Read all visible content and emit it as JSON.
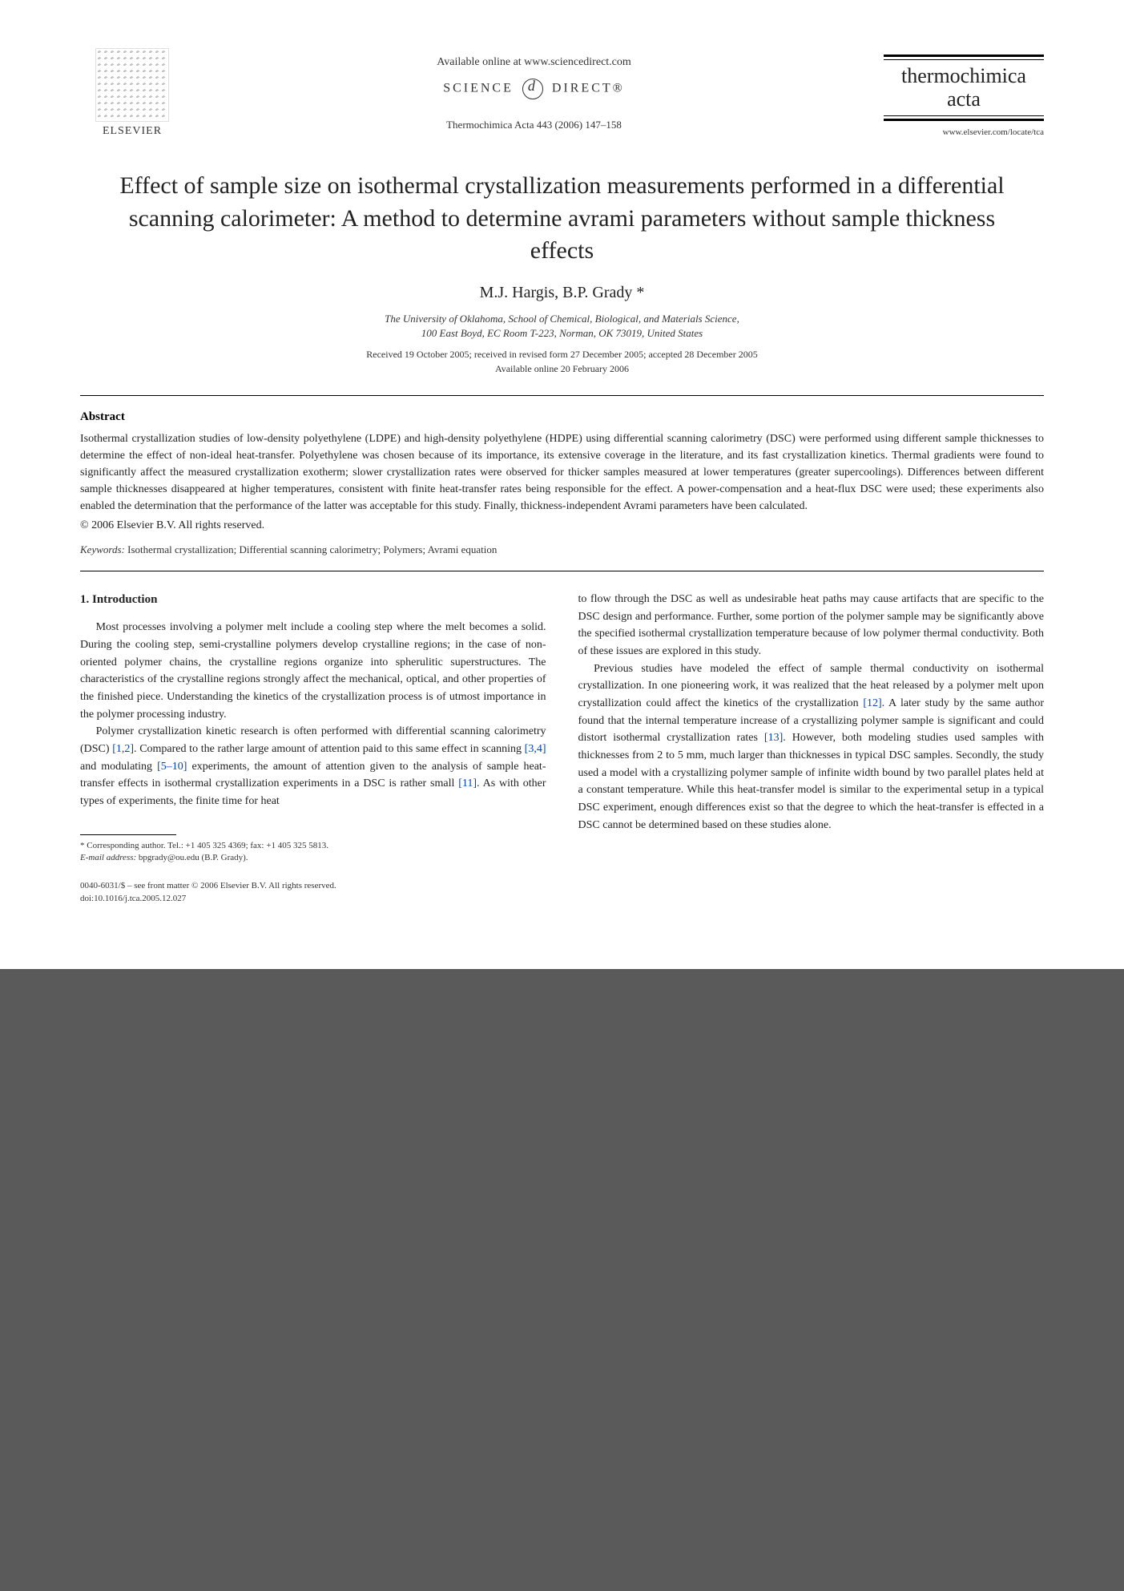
{
  "header": {
    "publisher_label": "ELSEVIER",
    "available_online": "Available online at www.sciencedirect.com",
    "science_left": "SCIENCE",
    "science_right": "DIRECT®",
    "citation": "Thermochimica Acta 443 (2006) 147–158",
    "journal_title_line1": "thermochimica",
    "journal_title_line2": "acta",
    "journal_url": "www.elsevier.com/locate/tca"
  },
  "article": {
    "title": "Effect of sample size on isothermal crystallization measurements performed in a differential scanning calorimeter: A method to determine avrami parameters without sample thickness effects",
    "authors": "M.J. Hargis, B.P. Grady *",
    "affiliation_line1": "The University of Oklahoma, School of Chemical, Biological, and Materials Science,",
    "affiliation_line2": "100 East Boyd, EC Room T-223, Norman, OK 73019, United States",
    "dates_line1": "Received 19 October 2005; received in revised form 27 December 2005; accepted 28 December 2005",
    "dates_line2": "Available online 20 February 2006"
  },
  "abstract": {
    "heading": "Abstract",
    "text": "Isothermal crystallization studies of low-density polyethylene (LDPE) and high-density polyethylene (HDPE) using differential scanning calorimetry (DSC) were performed using different sample thicknesses to determine the effect of non-ideal heat-transfer. Polyethylene was chosen because of its importance, its extensive coverage in the literature, and its fast crystallization kinetics. Thermal gradients were found to significantly affect the measured crystallization exotherm; slower crystallization rates were observed for thicker samples measured at lower temperatures (greater supercoolings). Differences between different sample thicknesses disappeared at higher temperatures, consistent with finite heat-transfer rates being responsible for the effect. A power-compensation and a heat-flux DSC were used; these experiments also enabled the determination that the performance of the latter was acceptable for this study. Finally, thickness-independent Avrami parameters have been calculated.",
    "copyright": "© 2006 Elsevier B.V. All rights reserved."
  },
  "keywords": {
    "label": "Keywords:",
    "text": " Isothermal crystallization; Differential scanning calorimetry; Polymers; Avrami equation"
  },
  "section1": {
    "heading": "1. Introduction",
    "col1_p1": "Most processes involving a polymer melt include a cooling step where the melt becomes a solid. During the cooling step, semi-crystalline polymers develop crystalline regions; in the case of non-oriented polymer chains, the crystalline regions organize into spherulitic superstructures. The characteristics of the crystalline regions strongly affect the mechanical, optical, and other properties of the finished piece. Understanding the kinetics of the crystallization process is of utmost importance in the polymer processing industry.",
    "col1_p2_a": "Polymer crystallization kinetic research is often performed with differential scanning calorimetry (DSC) ",
    "col1_p2_ref1": "[1,2]",
    "col1_p2_b": ". Compared to the rather large amount of attention paid to this same effect in scanning ",
    "col1_p2_ref2": "[3,4]",
    "col1_p2_c": " and modulating ",
    "col1_p2_ref3": "[5–10]",
    "col1_p2_d": " experiments, the amount of attention given to the analysis of sample heat-transfer effects in isothermal crystallization experiments in a DSC is rather small ",
    "col1_p2_ref4": "[11]",
    "col1_p2_e": ". As with other types of experiments, the finite time for heat",
    "col2_p1": "to flow through the DSC as well as undesirable heat paths may cause artifacts that are specific to the DSC design and performance. Further, some portion of the polymer sample may be significantly above the specified isothermal crystallization temperature because of low polymer thermal conductivity. Both of these issues are explored in this study.",
    "col2_p2_a": "Previous studies have modeled the effect of sample thermal conductivity on isothermal crystallization. In one pioneering work, it was realized that the heat released by a polymer melt upon crystallization could affect the kinetics of the crystallization ",
    "col2_p2_ref1": "[12]",
    "col2_p2_b": ". A later study by the same author found that the internal temperature increase of a crystallizing polymer sample is significant and could distort isothermal crystallization rates ",
    "col2_p2_ref2": "[13]",
    "col2_p2_c": ". However, both modeling studies used samples with thicknesses from 2 to 5 mm, much larger than thicknesses in typical DSC samples. Secondly, the study used a model with a crystallizing polymer sample of infinite width bound by two parallel plates held at a constant temperature. While this heat-transfer model is similar to the experimental setup in a typical DSC experiment, enough differences exist so that the degree to which the heat-transfer is effected in a DSC cannot be determined based on these studies alone."
  },
  "footnote": {
    "corr": "* Corresponding author. Tel.: +1 405 325 4369; fax: +1 405 325 5813.",
    "email_label": "E-mail address:",
    "email": " bpgrady@ou.edu (B.P. Grady)."
  },
  "footer": {
    "line1": "0040-6031/$ – see front matter © 2006 Elsevier B.V. All rights reserved.",
    "line2": "doi:10.1016/j.tca.2005.12.027"
  }
}
